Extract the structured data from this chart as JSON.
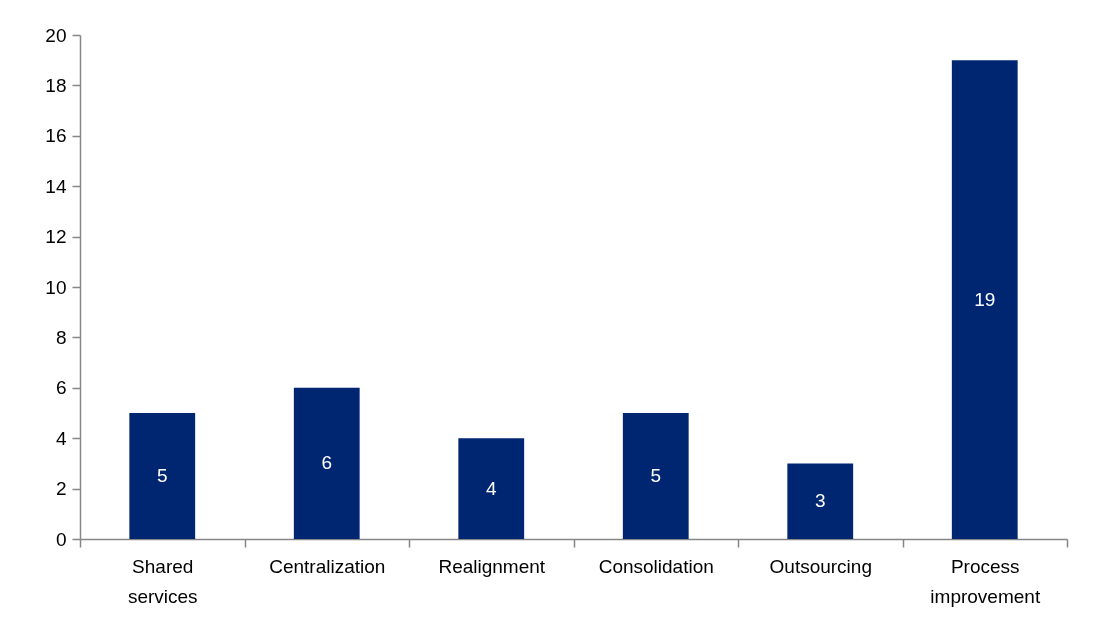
{
  "chart_data": {
    "type": "bar",
    "categories": [
      "Shared services",
      "Centralization",
      "Realignment",
      "Consolidation",
      "Outsourcing",
      "Process improvement"
    ],
    "values": [
      5,
      6,
      4,
      5,
      3,
      19
    ],
    "color": "#002672",
    "ylim": [
      0,
      20
    ],
    "yticks": [
      0,
      2,
      4,
      6,
      8,
      10,
      12,
      14,
      16,
      18,
      20
    ],
    "data_labels": true
  }
}
